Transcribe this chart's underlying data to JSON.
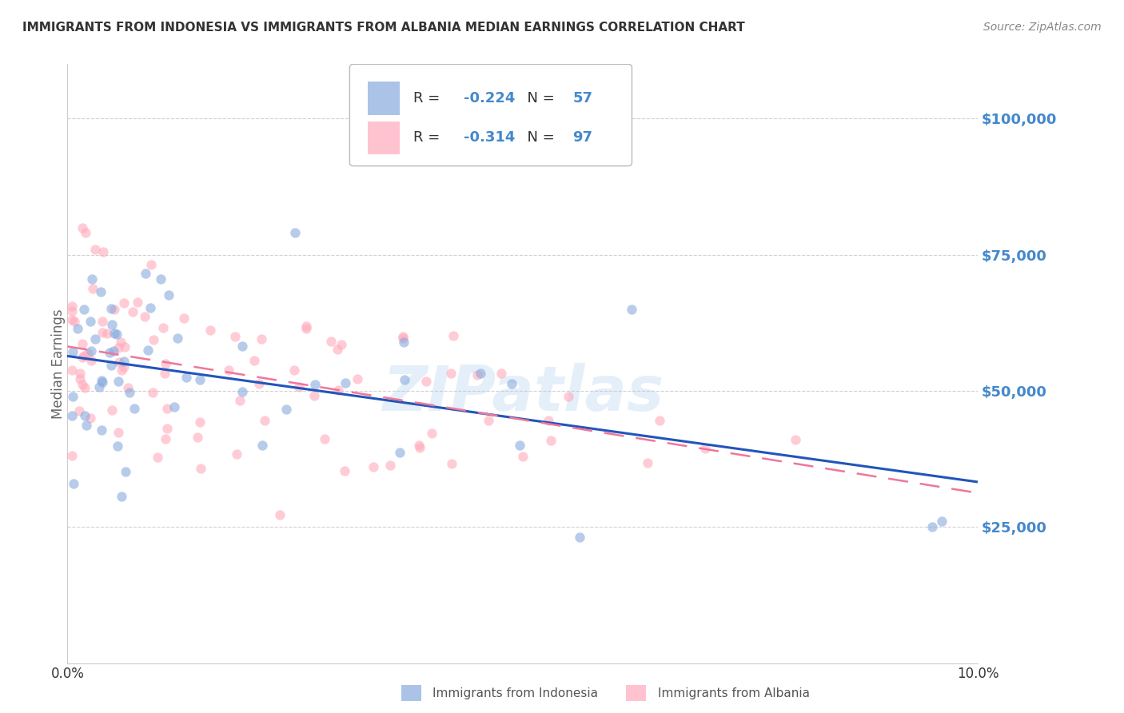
{
  "title": "IMMIGRANTS FROM INDONESIA VS IMMIGRANTS FROM ALBANIA MEDIAN EARNINGS CORRELATION CHART",
  "source": "Source: ZipAtlas.com",
  "ylabel": "Median Earnings",
  "xlim": [
    0.0,
    0.1
  ],
  "ylim": [
    0,
    110000
  ],
  "ytick_vals": [
    25000,
    50000,
    75000,
    100000
  ],
  "ytick_labels": [
    "$25,000",
    "$50,000",
    "$75,000",
    "$100,000"
  ],
  "xtick_vals": [
    0.0,
    0.02,
    0.04,
    0.06,
    0.08,
    0.1
  ],
  "xtick_labels": [
    "0.0%",
    "",
    "",
    "",
    "",
    "10.0%"
  ],
  "indonesia_color": "#88AADD",
  "albania_color": "#FFAABC",
  "indonesia_line_color": "#2255BB",
  "albania_line_color": "#EE7799",
  "indonesia_R": -0.224,
  "indonesia_N": 57,
  "albania_R": -0.314,
  "albania_N": 97,
  "indonesia_label": "Immigrants from Indonesia",
  "albania_label": "Immigrants from Albania",
  "background_color": "#ffffff",
  "grid_color": "#cccccc",
  "title_color": "#333333",
  "axis_label_color": "#666666",
  "ytick_color": "#4488CC",
  "xtick_color": "#333333",
  "legend_text_color": "#333333",
  "legend_value_color": "#4488CC",
  "watermark_text": "ZIPatlas",
  "watermark_color": "#AACCEE",
  "source_color": "#888888",
  "scatter_size": 80,
  "scatter_alpha": 0.6
}
